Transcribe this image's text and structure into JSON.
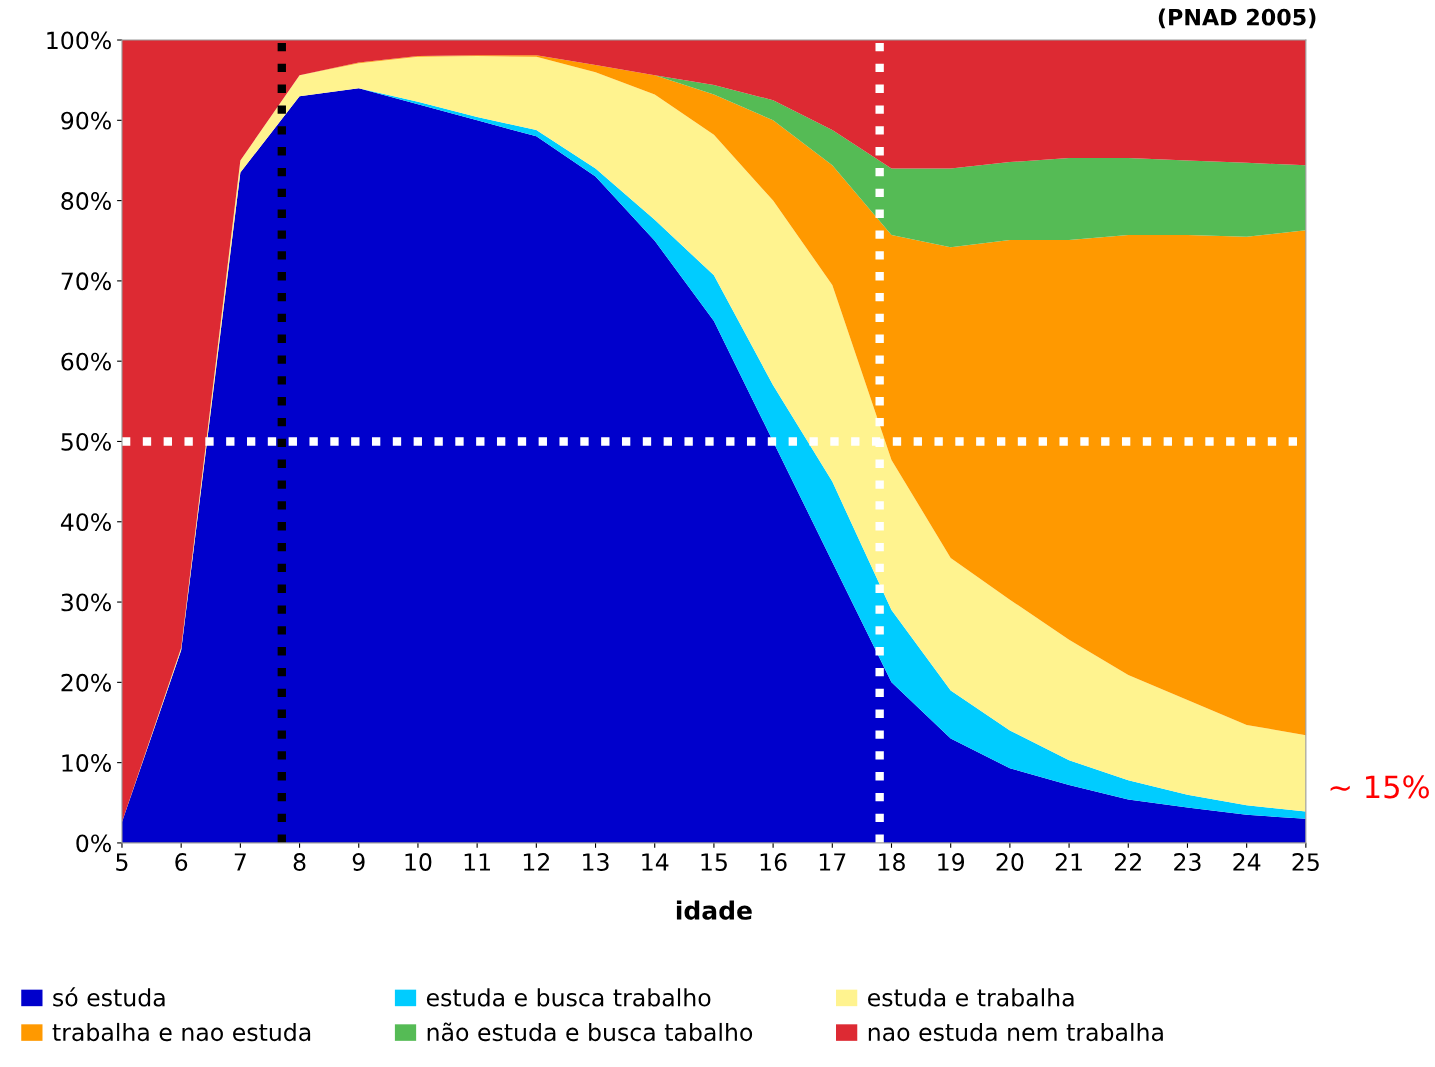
{
  "chart_data": {
    "type": "area",
    "stacked": true,
    "xlabel": "idade",
    "annotations": [
      {
        "text": "(PNAD 2005)"
      },
      "~ 15%"
    ],
    "x": [
      5,
      6,
      7,
      8,
      9,
      10,
      11,
      12,
      13,
      14,
      15,
      16,
      17,
      18,
      19,
      20,
      21,
      22,
      23,
      24,
      25
    ],
    "series": [
      {
        "name": "só estuda",
        "color": "#0000cc",
        "values": [
          2.6,
          24,
          83.5,
          93,
          94,
          92,
          90,
          88,
          83,
          75,
          65,
          50,
          35,
          20,
          13,
          9.3,
          7.2,
          5.4,
          4.4,
          3.5,
          3
        ]
      },
      {
        "name": "estuda e busca trabalho",
        "color": "#00ccff",
        "values": [
          0,
          0,
          0,
          0,
          0,
          0.3,
          0.4,
          0.8,
          1,
          2.6,
          5.7,
          7,
          10,
          9,
          6,
          4.7,
          3.1,
          2.4,
          1.6,
          1.2,
          0.9
        ]
      },
      {
        "name": "estuda e trabalha",
        "color": "#fff38f",
        "values": [
          0,
          0.3,
          1.5,
          2.6,
          3.1,
          5.6,
          7.6,
          9.1,
          12,
          15.6,
          17.5,
          23,
          24.5,
          18.7,
          16.5,
          16.3,
          15,
          13.1,
          11.8,
          10,
          9.5
        ]
      },
      {
        "name": "trabalha e nao estuda",
        "color": "#ff9900",
        "values": [
          null,
          null,
          null,
          0,
          0.1,
          0.1,
          0.1,
          0.2,
          0.9,
          2.4,
          5,
          10,
          14.9,
          28,
          38.7,
          44.8,
          49.8,
          54.8,
          57.9,
          60.8,
          62.9
        ]
      },
      {
        "name": "não estuda e busca tabalho",
        "color": "#55bb55",
        "values": [
          null,
          null,
          null,
          null,
          null,
          null,
          null,
          null,
          null,
          0,
          1.2,
          2.5,
          4.4,
          8.3,
          9.8,
          9.7,
          10.2,
          9.6,
          9.3,
          9.2,
          8.1
        ]
      },
      {
        "name": "nao estuda nem trabalha",
        "color": "#dd2a33",
        "values": [
          97.4,
          75.7,
          15,
          4.4,
          2.8,
          2,
          1.9,
          1.9,
          3.1,
          4.4,
          5.6,
          7.5,
          11.2,
          16,
          16,
          15.2,
          14.7,
          14.7,
          15,
          15.3,
          15.6
        ]
      }
    ],
    "xlim": [
      5,
      25
    ],
    "xticks": [
      5,
      6,
      7,
      8,
      9,
      10,
      11,
      12,
      13,
      14,
      15,
      16,
      17,
      18,
      19,
      20,
      21,
      22,
      23,
      24,
      25
    ],
    "ylim": [
      0,
      100
    ],
    "yticks": [
      {
        "value": 0,
        "label": "0%"
      },
      {
        "value": 10,
        "label": "10%"
      },
      {
        "value": 20,
        "label": "20%"
      },
      {
        "value": 30,
        "label": "30%"
      },
      {
        "value": 40,
        "label": "40%"
      },
      {
        "value": 50,
        "label": "50%"
      },
      {
        "value": 60,
        "label": "60%"
      },
      {
        "value": 70,
        "label": "70%"
      },
      {
        "value": 80,
        "label": "80%"
      },
      {
        "value": 90,
        "label": "90%"
      },
      {
        "value": 100,
        "label": "100%"
      }
    ],
    "ref_lines": [
      {
        "axis": "x",
        "value": 7.7,
        "color": "#000000",
        "line_style": "dotted"
      },
      {
        "axis": "y",
        "value": 50,
        "color": "#ffffff",
        "line_style": "dotted"
      },
      {
        "axis": "x",
        "value": 17.8,
        "color": "#ffffff",
        "line_style": "dotted"
      }
    ],
    "grid": false,
    "legend": "bottom"
  }
}
